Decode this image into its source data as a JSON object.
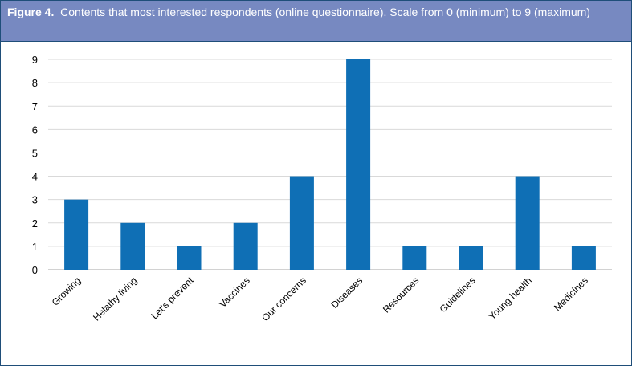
{
  "figure_label": "Figure 4.",
  "colors": {
    "header_bg": "#7789c1",
    "bar": "#0f6fb5",
    "border": "#1f4e79"
  },
  "chart_data": {
    "type": "bar",
    "title": "Contents that most interested respondents (online questionnaire). Scale from 0 (minimum) to 9 (maximum)",
    "categories": [
      "Growing",
      "Helathy living",
      "Let's prevent",
      "Vaccines",
      "Our concerns",
      "Diseases",
      "Resources",
      "Guidelines",
      "Young health",
      "Medicines"
    ],
    "values": [
      3,
      2,
      1,
      2,
      4,
      9,
      1,
      1,
      4,
      1
    ],
    "ylim": [
      0,
      9
    ],
    "yticks": [
      "0",
      "1",
      "2",
      "3",
      "4",
      "5",
      "6",
      "7",
      "8",
      "9"
    ],
    "grid": true,
    "xlabel": "",
    "ylabel": ""
  }
}
